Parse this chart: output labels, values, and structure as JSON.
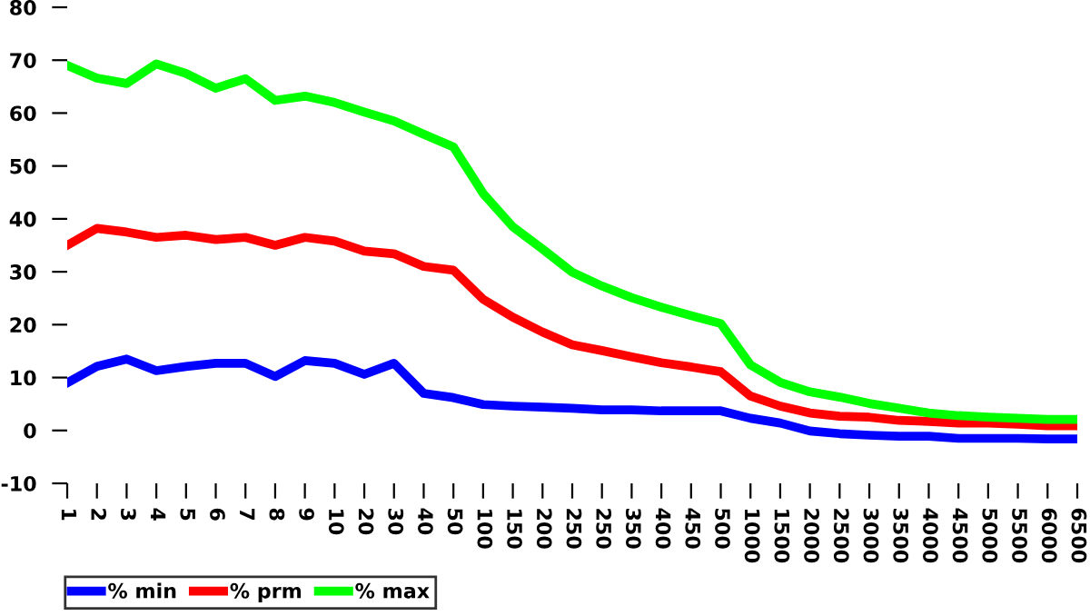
{
  "chart_data": {
    "type": "line",
    "categories": [
      "1",
      "2",
      "3",
      "4",
      "5",
      "6",
      "7",
      "8",
      "9",
      "10",
      "20",
      "30",
      "40",
      "50",
      "100",
      "150",
      "200",
      "250",
      "250",
      "350",
      "400",
      "450",
      "500",
      "1000",
      "1500",
      "2000",
      "2500",
      "3000",
      "3500",
      "4000",
      "4500",
      "5000",
      "5500",
      "6000",
      "6500"
    ],
    "series": [
      {
        "name": "% min",
        "color": "#0000ff",
        "values": [
          9,
          12.1,
          13.5,
          11.3,
          12.1,
          12.7,
          12.7,
          10.2,
          13.2,
          12.7,
          10.6,
          12.7,
          7,
          6.2,
          4.9,
          4.6,
          4.4,
          4.2,
          3.9,
          3.9,
          3.7,
          3.7,
          3.7,
          2.3,
          1.4,
          -0.1,
          -0.6,
          -0.9,
          -1.1,
          -1.1,
          -1.5,
          -1.5,
          -1.5,
          -1.6,
          -1.6
        ]
      },
      {
        "name": "% prm",
        "color": "#ff0000",
        "values": [
          35,
          38.2,
          37.5,
          36.5,
          36.9,
          36.1,
          36.5,
          35,
          36.5,
          35.8,
          33.9,
          33.4,
          31,
          30.3,
          24.8,
          21.4,
          18.6,
          16.2,
          15.1,
          13.9,
          12.8,
          12,
          11.1,
          6.5,
          4.6,
          3.3,
          2.7,
          2.5,
          1.9,
          1.7,
          1.4,
          1.4,
          1.2,
          0.9,
          0.9
        ]
      },
      {
        "name": "% max",
        "color": "#00ff00",
        "values": [
          69,
          66.6,
          65.6,
          69.3,
          67.5,
          64.7,
          66.5,
          62.4,
          63.2,
          62,
          60.2,
          58.5,
          56,
          53.6,
          44.8,
          38.5,
          34.3,
          29.9,
          27.3,
          25.1,
          23.3,
          21.7,
          20.2,
          12.4,
          9.1,
          7.3,
          6.3,
          5.1,
          4.2,
          3.3,
          2.8,
          2.5,
          2.3,
          2.1,
          2.1
        ]
      }
    ],
    "ylim": [
      -10,
      80
    ],
    "yticks": [
      -10,
      0,
      10,
      20,
      30,
      40,
      50,
      60,
      70,
      80
    ],
    "grid": false,
    "legend": "bottom left",
    "marker": "none",
    "line_style": "solid"
  }
}
